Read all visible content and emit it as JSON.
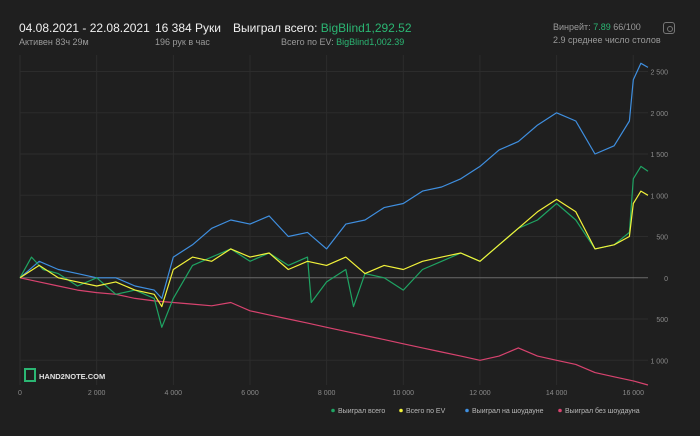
{
  "header": {
    "date_range": "04.08.2021 - 22.08.2021",
    "active": "Активен 83ч 29м",
    "hands": "16 384 Руки",
    "per_hour": "196 рук в час",
    "won_label": "Выиграл всего:",
    "won_value": "BigBlind1,292.52",
    "ev_label": "Всего по EV:",
    "ev_value": "BigBlind1,002.39",
    "winrate_label": "Винрейт:",
    "winrate_value": "7.89",
    "winrate_suffix": "66/100",
    "tables": "2.9 среднее число столов"
  },
  "logo": "HAND2NOTE.COM",
  "colors": {
    "background": "#1f1f1f",
    "won": "#1fa463",
    "ev": "#f2f23a",
    "showdown": "#3f8fe0",
    "nonshowdown": "#d8436f"
  },
  "chart_data": {
    "type": "line",
    "xlabel": "",
    "ylabel": "",
    "xlim": [
      0,
      16384
    ],
    "ylim": [
      -1300,
      2700
    ],
    "x_ticks": [
      0,
      2000,
      4000,
      6000,
      8000,
      10000,
      12000,
      14000,
      16000
    ],
    "x_tick_labels": [
      "0",
      "2 000",
      "4 000",
      "6 000",
      "8 000",
      "10 000",
      "12 000",
      "14 000",
      "16 000"
    ],
    "y_ticks": [
      2500,
      2000,
      1500,
      1000,
      500,
      0,
      -500,
      -1000
    ],
    "y_tick_labels": [
      "2 500",
      "2 000",
      "1 500",
      "1 000",
      "500",
      "0",
      "500",
      "1 000"
    ],
    "legend_position": "bottom-right",
    "series": [
      {
        "name": "Выиграл всего",
        "key": "won",
        "x": [
          0,
          300,
          600,
          1000,
          1500,
          2000,
          2500,
          3000,
          3500,
          3700,
          4000,
          4500,
          5000,
          5500,
          6000,
          6500,
          7000,
          7500,
          7600,
          8000,
          8500,
          8700,
          9000,
          9500,
          10000,
          10500,
          11000,
          11500,
          12000,
          12500,
          13000,
          13500,
          14000,
          14500,
          15000,
          15500,
          15900,
          16000,
          16200,
          16384
        ],
        "values": [
          0,
          250,
          100,
          50,
          -100,
          0,
          -200,
          -150,
          -250,
          -600,
          -250,
          150,
          250,
          350,
          200,
          300,
          150,
          250,
          -300,
          -50,
          100,
          -350,
          50,
          0,
          -150,
          100,
          200,
          300,
          200,
          400,
          600,
          700,
          900,
          700,
          350,
          400,
          550,
          1200,
          1350,
          1290
        ]
      },
      {
        "name": "Всего по EV",
        "key": "ev",
        "x": [
          0,
          500,
          1000,
          1500,
          2000,
          2500,
          3000,
          3500,
          3700,
          4000,
          4500,
          5000,
          5500,
          6000,
          6500,
          7000,
          7500,
          8000,
          8500,
          9000,
          9500,
          10000,
          10500,
          11000,
          11500,
          12000,
          12500,
          13000,
          13500,
          14000,
          14500,
          15000,
          15500,
          15900,
          16000,
          16200,
          16384
        ],
        "values": [
          0,
          150,
          0,
          -50,
          -100,
          -50,
          -150,
          -200,
          -350,
          100,
          250,
          200,
          350,
          250,
          300,
          100,
          200,
          150,
          250,
          50,
          150,
          100,
          200,
          250,
          300,
          200,
          400,
          600,
          800,
          950,
          800,
          350,
          400,
          500,
          900,
          1050,
          1000
        ]
      },
      {
        "name": "Выиграл на шоудауне",
        "key": "showdown",
        "x": [
          0,
          500,
          1000,
          1500,
          2000,
          2500,
          3000,
          3500,
          3700,
          4000,
          4500,
          5000,
          5500,
          6000,
          6500,
          7000,
          7500,
          8000,
          8500,
          9000,
          9500,
          10000,
          10500,
          11000,
          11500,
          12000,
          12500,
          13000,
          13500,
          14000,
          14500,
          15000,
          15500,
          15900,
          16000,
          16200,
          16384
        ],
        "values": [
          0,
          200,
          100,
          50,
          0,
          0,
          -100,
          -150,
          -250,
          250,
          400,
          600,
          700,
          650,
          750,
          500,
          550,
          350,
          650,
          700,
          850,
          900,
          1050,
          1100,
          1200,
          1350,
          1550,
          1650,
          1850,
          2000,
          1900,
          1500,
          1600,
          1900,
          2400,
          2600,
          2550
        ]
      },
      {
        "name": "Выиграл без шоудауна",
        "key": "nonshowdown",
        "x": [
          0,
          500,
          1000,
          1500,
          2000,
          2500,
          3000,
          3500,
          4000,
          4500,
          5000,
          5500,
          6000,
          6500,
          7000,
          7500,
          8000,
          8500,
          9000,
          9500,
          10000,
          10500,
          11000,
          11500,
          12000,
          12500,
          13000,
          13500,
          14000,
          14500,
          15000,
          15500,
          16000,
          16384
        ],
        "values": [
          0,
          -50,
          -100,
          -150,
          -180,
          -200,
          -250,
          -280,
          -300,
          -320,
          -340,
          -300,
          -400,
          -450,
          -500,
          -550,
          -600,
          -650,
          -700,
          -750,
          -800,
          -850,
          -900,
          -950,
          -1000,
          -950,
          -850,
          -950,
          -1000,
          -1050,
          -1150,
          -1200,
          -1250,
          -1300
        ]
      }
    ]
  }
}
